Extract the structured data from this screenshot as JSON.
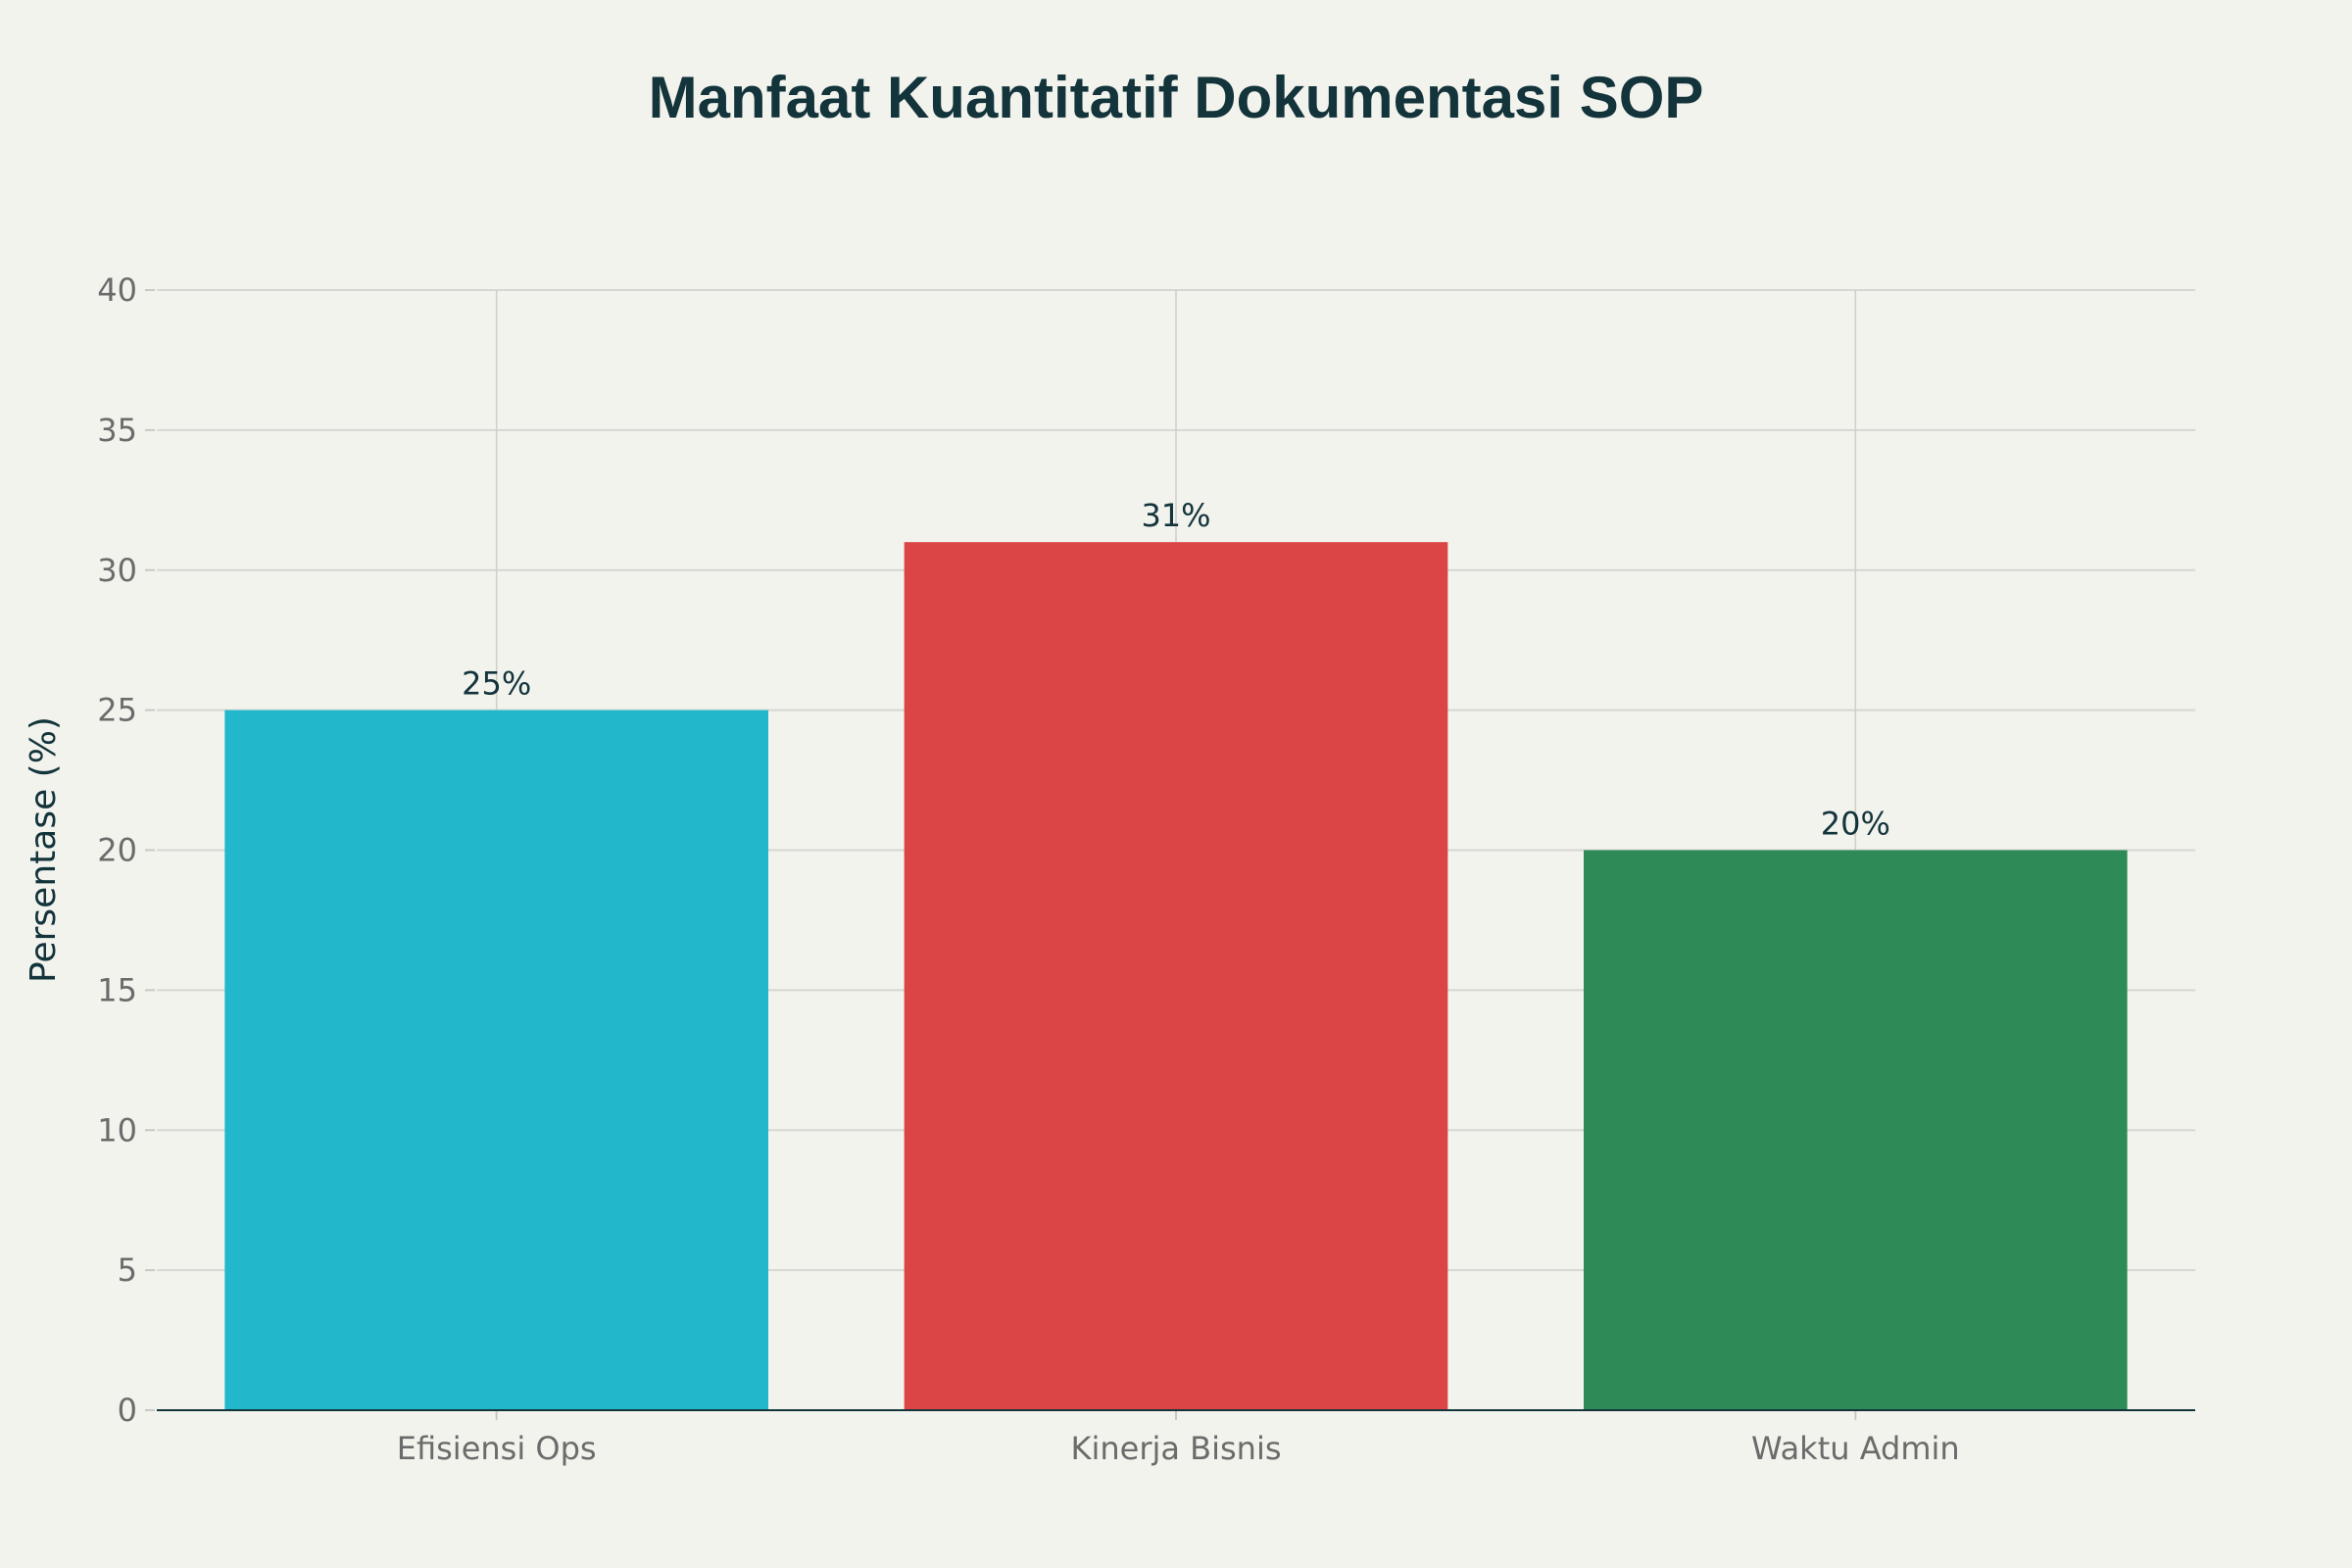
{
  "chart_data": {
    "type": "bar",
    "title": "Manfaat Kuantitatif Dokumentasi SOP",
    "xlabel": "",
    "ylabel": "Persentase (%)",
    "categories": [
      "Efisiensi Ops",
      "Kinerja Bisnis",
      "Waktu Admin"
    ],
    "values": [
      25,
      31,
      20
    ],
    "data_labels": [
      "25%",
      "31%",
      "20%"
    ],
    "colors": [
      "#21b8cc",
      "#db4546",
      "#2e8a56"
    ],
    "ylim": [
      0,
      40
    ],
    "yticks": [
      0,
      5,
      10,
      15,
      20,
      25,
      30,
      35,
      40
    ],
    "grid": true,
    "legend": "none"
  }
}
